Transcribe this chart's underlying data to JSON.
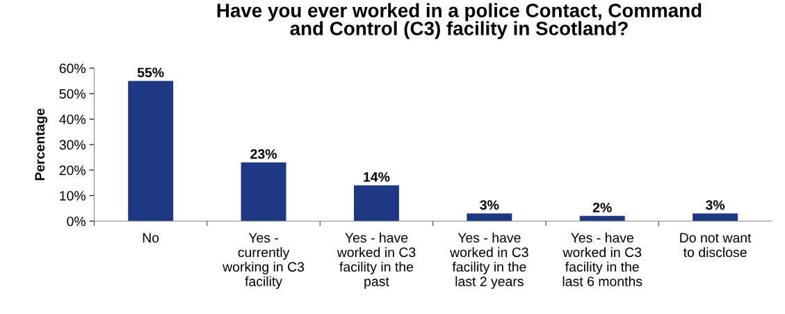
{
  "chart_data": {
    "type": "bar",
    "title": "Have you ever worked in a police Contact, Command\nand Control (C3) facility in Scotland?",
    "ylabel": "Percentage",
    "categories": [
      "No",
      "Yes -\ncurrently\nworking in C3\nfacility",
      "Yes - have\nworked in C3\nfacility in the\npast",
      "Yes - have\nworked in C3\nfacility in the\nlast 2 years",
      "Yes - have\nworked in C3\nfacility in the\nlast 6 months",
      "Do not want\nto disclose"
    ],
    "values": [
      55,
      23,
      14,
      3,
      2,
      3
    ],
    "value_labels": [
      "55%",
      "23%",
      "14%",
      "3%",
      "2%",
      "3%"
    ],
    "color": "#1f3884",
    "ylim": [
      0,
      60
    ],
    "yticks": [
      {
        "value": 0,
        "label": "0%"
      },
      {
        "value": 10,
        "label": "10%"
      },
      {
        "value": 20,
        "label": "20%"
      },
      {
        "value": 30,
        "label": "30%"
      },
      {
        "value": 40,
        "label": "40%"
      },
      {
        "value": 50,
        "label": "50%"
      },
      {
        "value": 60,
        "label": "60%"
      }
    ],
    "grid": false,
    "legend": false
  }
}
